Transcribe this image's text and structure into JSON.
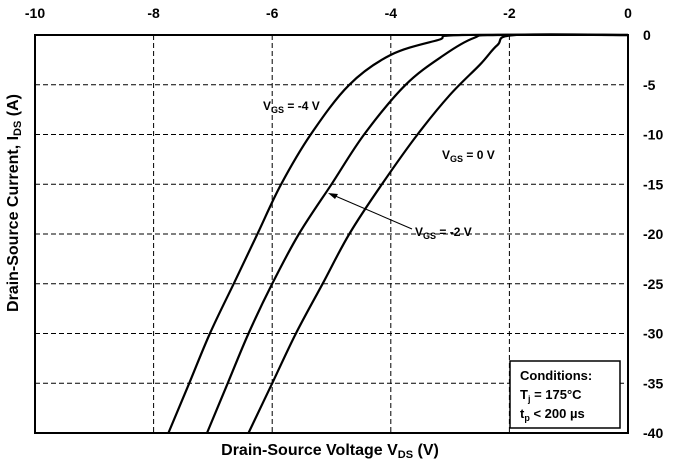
{
  "chart_data": {
    "type": "line",
    "xlabel_main": "Drain-Source Voltage V",
    "xlabel_sub": "DS",
    "xlabel_unit": " (V)",
    "ylabel_main": "Drain-Source Current, I",
    "ylabel_sub": "DS",
    "ylabel_unit": " (A)",
    "xlim": [
      -10,
      0
    ],
    "ylim": [
      -40,
      0
    ],
    "x_ticks": [
      -10,
      -8,
      -6,
      -4,
      -2,
      0
    ],
    "y_ticks": [
      0,
      -5,
      -10,
      -15,
      -20,
      -25,
      -30,
      -35,
      -40
    ],
    "x_tick_labels": [
      "-10",
      "-8",
      "-6",
      "-4",
      "-2",
      "0"
    ],
    "y_tick_labels": [
      "0",
      "-5",
      "-10",
      "-15",
      "-20",
      "-25",
      "-30",
      "-35",
      "-40"
    ],
    "grid": true,
    "series": [
      {
        "name": "VGS = -4 V",
        "label_main": "V",
        "label_sub": "GS",
        "label_rest": " = -4 V",
        "points": [
          [
            -7.75,
            -40
          ],
          [
            -7.4,
            -35
          ],
          [
            -7.05,
            -30
          ],
          [
            -6.65,
            -25
          ],
          [
            -6.25,
            -20
          ],
          [
            -5.85,
            -15
          ],
          [
            -5.35,
            -10
          ],
          [
            -4.7,
            -5
          ],
          [
            -4.0,
            -2
          ],
          [
            -3.2,
            -0.5
          ],
          [
            -2.8,
            0
          ],
          [
            0,
            0
          ]
        ]
      },
      {
        "name": "VGS = -2 V",
        "label_main": "V",
        "label_sub": "GS",
        "label_rest": " = -2 V",
        "points": [
          [
            -7.1,
            -40
          ],
          [
            -6.75,
            -35
          ],
          [
            -6.4,
            -30
          ],
          [
            -6.0,
            -25
          ],
          [
            -5.55,
            -20
          ],
          [
            -5.0,
            -15
          ],
          [
            -4.45,
            -10
          ],
          [
            -3.75,
            -5
          ],
          [
            -3.1,
            -2
          ],
          [
            -2.6,
            -0.3
          ],
          [
            -2.2,
            0
          ],
          [
            0,
            0
          ]
        ]
      },
      {
        "name": "VGS = 0 V",
        "label_main": "V",
        "label_sub": "GS",
        "label_rest": " = 0 V",
        "points": [
          [
            -6.4,
            -40
          ],
          [
            -6.0,
            -35
          ],
          [
            -5.6,
            -30
          ],
          [
            -5.15,
            -25
          ],
          [
            -4.7,
            -20
          ],
          [
            -4.15,
            -15
          ],
          [
            -3.55,
            -10
          ],
          [
            -3.0,
            -6
          ],
          [
            -2.5,
            -3
          ],
          [
            -2.2,
            -1
          ],
          [
            -1.9,
            0
          ],
          [
            0,
            0
          ]
        ]
      }
    ],
    "conditions_title": "Conditions:",
    "conditions_line1_main": "T",
    "conditions_line1_sub": "j",
    "conditions_line1_rest": " = 175°C",
    "conditions_line2_main": "t",
    "conditions_line2_sub": "p",
    "conditions_line2_rest": " < 200 µs"
  }
}
